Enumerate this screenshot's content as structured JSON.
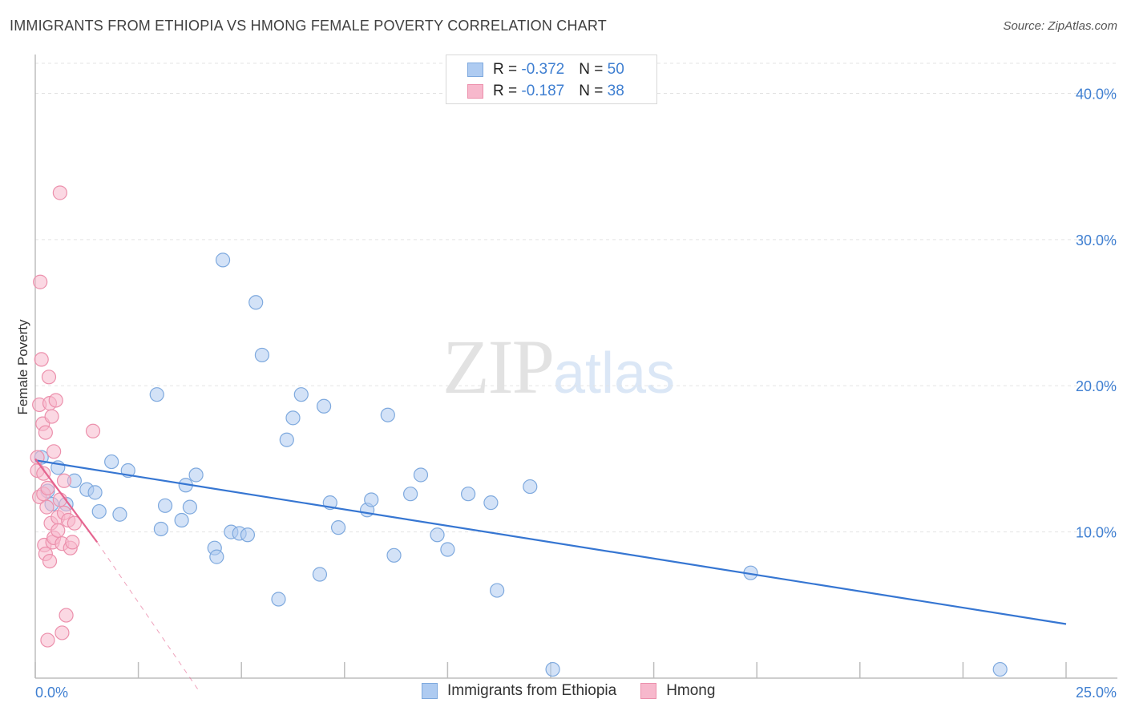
{
  "header": {
    "title": "IMMIGRANTS FROM ETHIOPIA VS HMONG FEMALE POVERTY CORRELATION CHART",
    "source": "Source: ZipAtlas.com"
  },
  "watermark": {
    "zip": "ZIP",
    "atlas": "atlas"
  },
  "legend": {
    "rows": [
      {
        "r_label": "R = ",
        "r_value": "-0.372",
        "n_label": "N = ",
        "n_value": "50"
      },
      {
        "r_label": "R = ",
        "r_value": "-0.187",
        "n_label": "N = ",
        "n_value": "38"
      }
    ]
  },
  "colors": {
    "blue_fill": "#aecbf1",
    "blue_stroke": "#7ea9de",
    "blue_line": "#3676d2",
    "pink_fill": "#f7b8cc",
    "pink_stroke": "#ec90ac",
    "pink_line": "#e5648f",
    "grid": "#e3e3e3",
    "tick_text": "#3f7fd1"
  },
  "chart_data": {
    "type": "scatter",
    "title": "IMMIGRANTS FROM ETHIOPIA VS HMONG FEMALE POVERTY CORRELATION CHART",
    "xlabel": "",
    "ylabel": "Female Poverty",
    "xlim": [
      0,
      25
    ],
    "ylim": [
      0,
      42
    ],
    "x_tick_labels": [
      {
        "value": 0,
        "label": "0.0%"
      },
      {
        "value": 25,
        "label": "25.0%"
      }
    ],
    "y_tick_labels": [
      {
        "value": 10,
        "label": "10.0%"
      },
      {
        "value": 20,
        "label": "20.0%"
      },
      {
        "value": 30,
        "label": "30.0%"
      },
      {
        "value": 40,
        "label": "40.0%"
      }
    ],
    "series": [
      {
        "name": "Immigrants from Ethiopia",
        "color": "#aecbf1",
        "x": [
          0.15,
          0.3,
          0.4,
          0.55,
          0.75,
          0.95,
          1.25,
          1.45,
          1.55,
          1.85,
          2.05,
          2.25,
          2.95,
          3.05,
          3.15,
          3.55,
          3.65,
          3.75,
          3.9,
          4.35,
          4.4,
          4.55,
          4.75,
          4.95,
          5.15,
          5.35,
          5.5,
          5.9,
          6.1,
          6.25,
          6.45,
          6.9,
          7.0,
          7.15,
          7.35,
          8.05,
          8.15,
          8.55,
          8.7,
          9.1,
          9.35,
          9.75,
          10.0,
          10.5,
          11.05,
          11.2,
          12.0,
          12.55,
          17.35,
          23.4
        ],
        "y": [
          15.1,
          12.8,
          11.9,
          14.4,
          11.9,
          13.5,
          12.9,
          12.7,
          11.4,
          14.8,
          11.2,
          14.2,
          19.4,
          10.2,
          11.8,
          10.8,
          13.2,
          11.7,
          13.9,
          8.9,
          8.3,
          28.6,
          10.0,
          9.9,
          9.8,
          25.7,
          22.1,
          5.4,
          16.3,
          17.8,
          19.4,
          7.1,
          18.6,
          12.0,
          10.3,
          11.5,
          12.2,
          18.0,
          8.4,
          12.6,
          13.9,
          9.8,
          8.8,
          12.6,
          12.0,
          6.0,
          13.1,
          0.6,
          7.2,
          0.6
        ]
      },
      {
        "name": "Hmong",
        "color": "#f7b8cc",
        "x": [
          0.05,
          0.05,
          0.1,
          0.1,
          0.12,
          0.15,
          0.18,
          0.2,
          0.2,
          0.22,
          0.25,
          0.25,
          0.28,
          0.3,
          0.3,
          0.33,
          0.35,
          0.35,
          0.38,
          0.4,
          0.42,
          0.45,
          0.45,
          0.5,
          0.55,
          0.55,
          0.6,
          0.6,
          0.65,
          0.65,
          0.7,
          0.7,
          0.75,
          0.8,
          0.85,
          0.9,
          0.95,
          1.4
        ],
        "y": [
          14.2,
          15.1,
          18.7,
          12.4,
          27.1,
          21.8,
          17.4,
          14.0,
          12.6,
          9.1,
          16.8,
          8.5,
          11.7,
          13.0,
          2.6,
          20.6,
          18.8,
          8.0,
          10.6,
          17.9,
          9.3,
          15.5,
          9.6,
          19.0,
          11.0,
          10.1,
          33.2,
          12.2,
          9.2,
          3.1,
          13.5,
          11.3,
          4.3,
          10.8,
          8.9,
          9.3,
          10.6,
          16.9
        ]
      }
    ],
    "trend_lines": [
      {
        "series": "Immigrants from Ethiopia",
        "x": [
          0,
          25
        ],
        "y": [
          14.9,
          3.7
        ]
      },
      {
        "series": "Hmong",
        "x": [
          0,
          1.5
        ],
        "y": [
          15.0,
          9.3
        ],
        "dashed_extension_to": [
          4.0,
          -1.0
        ]
      }
    ]
  }
}
